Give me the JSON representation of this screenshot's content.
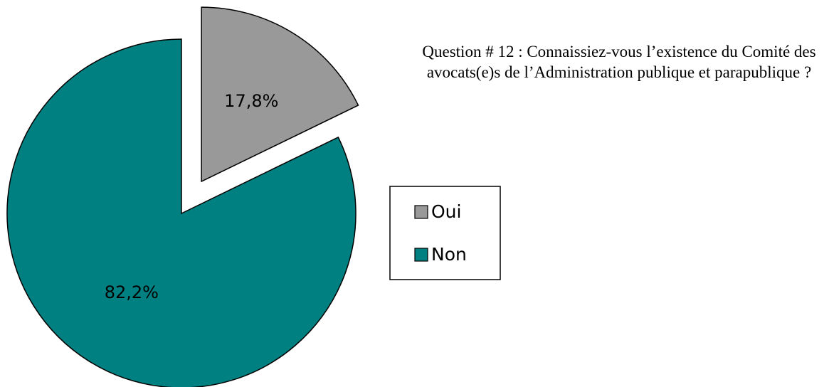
{
  "chart_data": {
    "type": "pie",
    "title": "Question # 12 : Connaissiez-vous l’existence du Comité des avocats(e)s de l’Administration publique et parapublique ?",
    "categories": [
      "Oui",
      "Non"
    ],
    "values": [
      17.8,
      82.2
    ],
    "value_labels": [
      "17,8%",
      "82,2%"
    ],
    "colors": [
      "#999999",
      "#008080"
    ],
    "exploded": [
      true,
      false
    ],
    "legend": "right"
  }
}
